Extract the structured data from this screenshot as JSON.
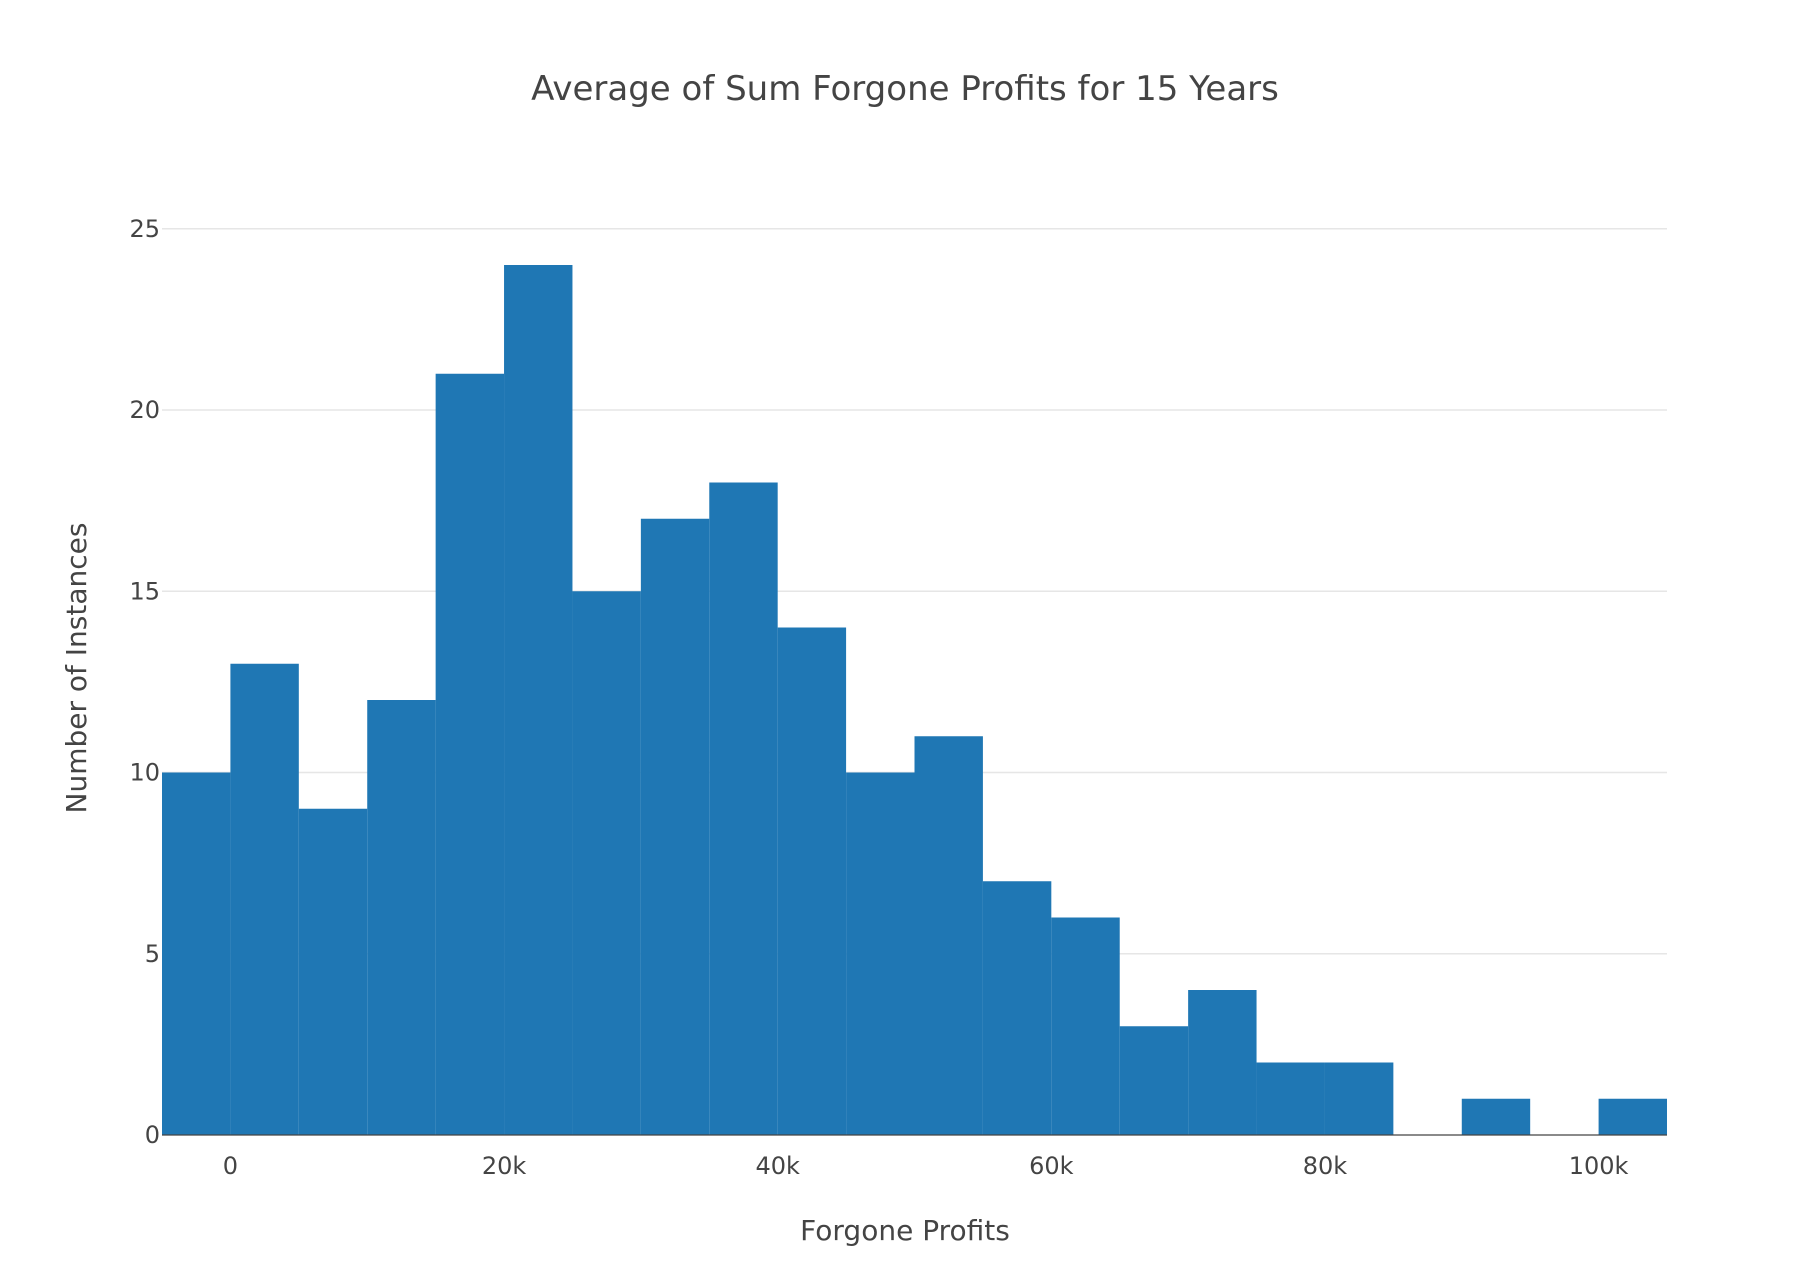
{
  "chart_data": {
    "type": "bar",
    "title": "Average of Sum Forgone Profits for 15 Years",
    "xlabel": "Forgone Profits",
    "ylabel": "Number of Instances",
    "bin_width": 5000,
    "bins": [
      {
        "start": -5000,
        "end": 0,
        "count": 10
      },
      {
        "start": 0,
        "end": 5000,
        "count": 13
      },
      {
        "start": 5000,
        "end": 10000,
        "count": 9
      },
      {
        "start": 10000,
        "end": 15000,
        "count": 12
      },
      {
        "start": 15000,
        "end": 20000,
        "count": 21
      },
      {
        "start": 20000,
        "end": 25000,
        "count": 24
      },
      {
        "start": 25000,
        "end": 30000,
        "count": 15
      },
      {
        "start": 30000,
        "end": 35000,
        "count": 17
      },
      {
        "start": 35000,
        "end": 40000,
        "count": 18
      },
      {
        "start": 40000,
        "end": 45000,
        "count": 14
      },
      {
        "start": 45000,
        "end": 50000,
        "count": 10
      },
      {
        "start": 50000,
        "end": 55000,
        "count": 11
      },
      {
        "start": 55000,
        "end": 60000,
        "count": 7
      },
      {
        "start": 60000,
        "end": 65000,
        "count": 6
      },
      {
        "start": 65000,
        "end": 70000,
        "count": 3
      },
      {
        "start": 70000,
        "end": 75000,
        "count": 4
      },
      {
        "start": 75000,
        "end": 80000,
        "count": 2
      },
      {
        "start": 80000,
        "end": 85000,
        "count": 2
      },
      {
        "start": 85000,
        "end": 90000,
        "count": 0
      },
      {
        "start": 90000,
        "end": 95000,
        "count": 1
      },
      {
        "start": 95000,
        "end": 100000,
        "count": 0
      },
      {
        "start": 100000,
        "end": 105000,
        "count": 1
      }
    ],
    "xlim": [
      -5000,
      105000
    ],
    "ylim": [
      0,
      26.4
    ],
    "x_ticks": [
      {
        "value": 0,
        "label": "0"
      },
      {
        "value": 20000,
        "label": "20k"
      },
      {
        "value": 40000,
        "label": "40k"
      },
      {
        "value": 60000,
        "label": "60k"
      },
      {
        "value": 80000,
        "label": "80k"
      },
      {
        "value": 100000,
        "label": "100k"
      }
    ],
    "y_ticks": [
      {
        "value": 0,
        "label": "0"
      },
      {
        "value": 5,
        "label": "5"
      },
      {
        "value": 10,
        "label": "10"
      },
      {
        "value": 15,
        "label": "15"
      },
      {
        "value": 20,
        "label": "20"
      },
      {
        "value": 25,
        "label": "25"
      }
    ],
    "grid": true,
    "legend": "none",
    "bar_color": "#1f77b4"
  }
}
